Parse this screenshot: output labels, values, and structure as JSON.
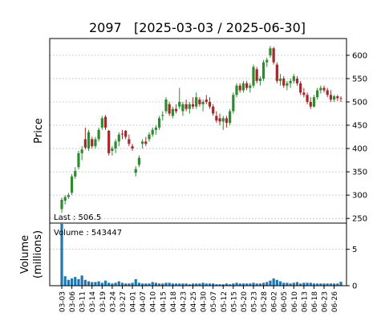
{
  "chart_data": {
    "type": "candlestick",
    "title": "2097   [2025-03-03 / 2025-06-30]",
    "ylabel": "Price",
    "volume_ylabel": [
      "Volume",
      "(millions)"
    ],
    "last_label": "Last : 506.5",
    "volume_label": "Volume : 543447",
    "categories": [
      "03-03",
      null,
      null,
      "03-06",
      null,
      null,
      "03-11",
      null,
      null,
      "03-14",
      null,
      null,
      "03-19",
      null,
      null,
      "03-24",
      null,
      null,
      "03-27",
      null,
      null,
      "04-01",
      null,
      null,
      "04-07",
      null,
      null,
      "04-10",
      null,
      null,
      "04-15",
      null,
      null,
      "04-18",
      null,
      null,
      "04-23",
      null,
      null,
      "04-25",
      null,
      null,
      "04-30",
      null,
      null,
      "05-07",
      null,
      null,
      "05-12",
      null,
      null,
      "05-15",
      null,
      null,
      "05-20",
      null,
      null,
      "05-23",
      null,
      null,
      "05-28",
      null,
      null,
      "06-02",
      null,
      null,
      "06-05",
      null,
      null,
      "06-10",
      null,
      null,
      "06-13",
      null,
      null,
      "06-18",
      null,
      null,
      "06-23",
      null,
      null,
      "06-26",
      null,
      null
    ],
    "open": [
      270,
      288,
      296,
      305,
      340,
      360,
      390,
      420,
      400,
      420,
      405,
      420,
      445,
      468,
      438,
      395,
      400,
      415,
      432,
      438,
      420,
      405,
      348,
      365,
      410,
      415,
      420,
      430,
      440,
      445,
      470,
      480,
      495,
      470,
      485,
      490,
      480,
      495,
      485,
      495,
      490,
      505,
      495,
      505,
      500,
      490,
      470,
      465,
      458,
      465,
      455,
      480,
      515,
      535,
      525,
      540,
      530,
      535,
      570,
      545,
      550,
      585,
      600,
      615,
      580,
      545,
      550,
      535,
      540,
      545,
      550,
      540,
      520,
      515,
      500,
      490,
      510,
      525,
      530,
      525,
      515,
      505,
      512,
      508
    ],
    "high": [
      295,
      300,
      305,
      345,
      360,
      395,
      405,
      445,
      440,
      425,
      425,
      445,
      470,
      472,
      440,
      405,
      420,
      435,
      440,
      440,
      430,
      410,
      362,
      385,
      420,
      425,
      435,
      445,
      450,
      470,
      480,
      510,
      500,
      490,
      495,
      530,
      500,
      505,
      500,
      510,
      520,
      510,
      505,
      515,
      510,
      495,
      480,
      475,
      470,
      470,
      485,
      520,
      540,
      540,
      545,
      545,
      540,
      580,
      575,
      555,
      590,
      595,
      620,
      618,
      585,
      560,
      555,
      545,
      550,
      560,
      555,
      545,
      530,
      520,
      510,
      515,
      530,
      535,
      535,
      530,
      525,
      515,
      515,
      512
    ],
    "low": [
      262,
      280,
      292,
      300,
      335,
      355,
      375,
      398,
      395,
      400,
      400,
      415,
      440,
      440,
      385,
      385,
      390,
      405,
      420,
      420,
      405,
      395,
      340,
      360,
      400,
      405,
      415,
      425,
      430,
      440,
      460,
      475,
      470,
      465,
      475,
      485,
      470,
      480,
      475,
      485,
      485,
      490,
      480,
      495,
      485,
      470,
      455,
      450,
      440,
      445,
      450,
      475,
      510,
      520,
      520,
      525,
      520,
      530,
      540,
      535,
      545,
      575,
      595,
      580,
      540,
      535,
      530,
      525,
      530,
      540,
      535,
      515,
      510,
      495,
      485,
      488,
      505,
      518,
      520,
      510,
      500,
      500,
      502,
      500
    ],
    "close": [
      290,
      296,
      300,
      340,
      352,
      390,
      398,
      402,
      435,
      405,
      420,
      440,
      465,
      445,
      390,
      400,
      415,
      430,
      430,
      425,
      410,
      400,
      356,
      380,
      415,
      410,
      430,
      440,
      445,
      465,
      472,
      505,
      475,
      485,
      480,
      500,
      495,
      485,
      495,
      490,
      510,
      495,
      500,
      500,
      490,
      475,
      460,
      458,
      465,
      455,
      480,
      515,
      535,
      525,
      540,
      530,
      535,
      575,
      545,
      550,
      585,
      590,
      615,
      585,
      545,
      550,
      535,
      540,
      545,
      555,
      540,
      520,
      515,
      500,
      490,
      510,
      525,
      530,
      525,
      515,
      505,
      512,
      508,
      506.5
    ],
    "volume": [
      8.5,
      1.3,
      0.8,
      1.0,
      1.2,
      0.9,
      1.4,
      0.8,
      0.6,
      0.5,
      0.5,
      0.6,
      0.4,
      0.7,
      0.4,
      0.3,
      0.4,
      0.6,
      0.4,
      0.3,
      0.3,
      0.4,
      0.9,
      0.4,
      0.3,
      0.3,
      0.3,
      0.5,
      0.4,
      0.3,
      0.3,
      0.4,
      0.4,
      0.3,
      0.3,
      0.3,
      0.3,
      0.3,
      0.2,
      0.3,
      0.3,
      0.3,
      0.4,
      0.3,
      0.3,
      0.3,
      0.2,
      0.2,
      0.2,
      0.3,
      0.2,
      0.3,
      0.4,
      0.3,
      0.3,
      0.3,
      0.3,
      0.4,
      0.3,
      0.3,
      0.4,
      0.5,
      0.7,
      1.0,
      0.8,
      0.6,
      0.4,
      0.4,
      0.3,
      0.4,
      0.5,
      0.3,
      0.4,
      0.4,
      0.4,
      0.3,
      0.3,
      0.3,
      0.3,
      0.3,
      0.3,
      0.3,
      0.3,
      0.543447
    ],
    "up_color": "#2e8b2e",
    "down_color": "#a32a2a",
    "volume_color": "#1f77b4",
    "ylim": [
      240,
      636
    ],
    "yticks": [
      250,
      300,
      350,
      400,
      450,
      500,
      550,
      600
    ],
    "volume_ylim": [
      0,
      8.6
    ],
    "volume_yticks": [
      0,
      5
    ],
    "grid": true
  }
}
